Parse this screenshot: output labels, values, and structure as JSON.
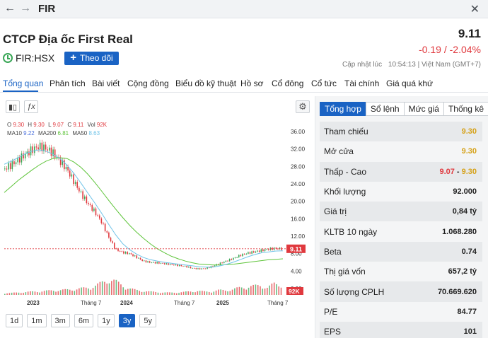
{
  "topbar": {
    "back_icon": "arrow-left-icon",
    "forward_icon": "arrow-right-icon",
    "title": "FIR",
    "close_icon": "close-icon"
  },
  "header": {
    "company": "CTCP Địa ốc First Real",
    "ticker": "FIR:HSX",
    "follow_label": "Theo dõi",
    "price": "9.11",
    "change": "-0.19 / -2.04%",
    "updated_label": "Cập nhật lúc",
    "updated_time": "10:54:13",
    "updated_zone": "| Việt Nam (GMT+7)",
    "colors": {
      "up": "#3aa757",
      "down": "#e0393e",
      "ref": "#d6a21a",
      "accent": "#1a63c4"
    }
  },
  "tabs": [
    {
      "label": "Tổng quan",
      "active": true
    },
    {
      "label": "Phân tích"
    },
    {
      "label": "Bài viết"
    },
    {
      "label": "Cộng đồng"
    },
    {
      "label": "Biểu đồ kỹ thuật"
    },
    {
      "label": "Hồ sơ"
    },
    {
      "label": "Cổ đông"
    },
    {
      "label": "Cổ tức"
    },
    {
      "label": "Tài chính"
    },
    {
      "label": "Giá quá khứ"
    }
  ],
  "chart_tools": {
    "candles_icon": "candlestick-icon",
    "indicator_icon": "fx-icon",
    "settings_icon": "gear-icon"
  },
  "legend": {
    "o_label": "O",
    "o": "9.30",
    "h_label": "H",
    "h": "9.30",
    "l_label": "L",
    "l": "9.07",
    "c_label": "C",
    "c": "9.11",
    "vol_label": "Vol",
    "vol": "92K",
    "ma10_label": "MA10",
    "ma10": "9.22",
    "ma200_label": "MA200",
    "ma200": "6.81",
    "ma50_label": "MA50",
    "ma50": "8.63"
  },
  "chart_data": {
    "type": "candlestick",
    "y_ticks": [
      "36.00",
      "32.00",
      "28.00",
      "24.00",
      "20.00",
      "16.00",
      "12.00",
      "8.00",
      "4.00",
      "0.00"
    ],
    "ylim": [
      0,
      36
    ],
    "x_ticks": [
      "2023",
      "Tháng 7",
      "2024",
      "Tháng 7",
      "2025",
      "Tháng 7"
    ],
    "last_price_label": "9.11",
    "last_price": 9.11,
    "volume_label": "92K",
    "price_series": [
      27.5,
      28.4,
      29.6,
      30.8,
      31.9,
      32.6,
      32.1,
      31.0,
      29.2,
      27.3,
      24.5,
      21.8,
      19.5,
      17.6,
      15.2,
      11.8,
      9.0,
      8.3,
      8.0,
      7.2,
      6.3,
      6.0,
      5.9,
      5.7,
      5.5,
      5.3,
      5.1,
      4.7,
      4.5,
      4.6,
      5.1,
      5.7,
      6.3,
      6.9,
      7.6,
      8.1,
      8.4,
      8.7,
      9.0,
      9.2,
      9.11
    ],
    "ma50_series": [
      28.5,
      29.2,
      30.0,
      30.9,
      31.5,
      31.8,
      31.5,
      30.8,
      29.8,
      28.3,
      26.4,
      24.2,
      21.9,
      19.6,
      17.2,
      14.7,
      12.3,
      10.3,
      8.9,
      7.9,
      7.1,
      6.6,
      6.3,
      6.0,
      5.8,
      5.6,
      5.4,
      5.2,
      5.0,
      4.9,
      4.9,
      5.2,
      5.6,
      6.1,
      6.7,
      7.3,
      7.8,
      8.2,
      8.4,
      8.6,
      8.63
    ],
    "ma200_series": [
      22.0,
      23.4,
      24.8,
      26.0,
      27.2,
      28.3,
      29.2,
      29.8,
      30.0,
      29.8,
      29.0,
      27.8,
      26.2,
      24.3,
      22.3,
      20.2,
      18.2,
      16.3,
      14.5,
      12.9,
      11.5,
      10.2,
      9.1,
      8.2,
      7.4,
      6.8,
      6.3,
      5.9,
      5.6,
      5.5,
      5.4,
      5.4,
      5.5,
      5.6,
      5.8,
      6.0,
      6.2,
      6.4,
      6.6,
      6.7,
      6.81
    ],
    "volume_series": [
      0.1,
      0.12,
      0.15,
      0.18,
      0.2,
      0.22,
      0.25,
      0.28,
      0.3,
      0.32,
      0.35,
      0.4,
      0.45,
      0.55,
      0.75,
      1.0,
      0.85,
      0.6,
      0.4,
      0.3,
      0.25,
      0.2,
      0.18,
      0.15,
      0.14,
      0.15,
      0.18,
      0.22,
      0.25,
      0.2,
      0.22,
      0.3,
      0.28,
      0.35,
      0.45,
      0.5,
      0.55,
      0.6,
      0.45,
      0.7,
      0.65
    ],
    "grid": false
  },
  "range_buttons": [
    {
      "label": "1d"
    },
    {
      "label": "1m"
    },
    {
      "label": "3m"
    },
    {
      "label": "6m"
    },
    {
      "label": "1y"
    },
    {
      "label": "3y",
      "active": true
    },
    {
      "label": "5y"
    }
  ],
  "right_tabs": [
    {
      "label": "Tổng hợp",
      "active": true
    },
    {
      "label": "Sổ lệnh"
    },
    {
      "label": "Mức giá"
    },
    {
      "label": "Thống kê"
    }
  ],
  "stats": [
    {
      "label": "Tham chiếu",
      "value": "9.30",
      "color": "yellow"
    },
    {
      "label": "Mở cửa",
      "value": "9.30",
      "color": "yellow"
    },
    {
      "label": "Thấp - Cao",
      "low": "9.07",
      "high": "9.30",
      "sep": "-",
      "type": "range"
    },
    {
      "label": "Khối lượng",
      "value": "92.000"
    },
    {
      "label": "Giá trị",
      "value": "0,84 tỷ"
    },
    {
      "label": "KLTB 10 ngày",
      "value": "1.068.280"
    },
    {
      "label": "Beta",
      "value": "0.74"
    },
    {
      "label": "Thị giá vốn",
      "value": "657,2 tỷ"
    },
    {
      "label": "Số lượng CPLH",
      "value": "70.669.620"
    },
    {
      "label": "P/E",
      "value": "84.77"
    },
    {
      "label": "EPS",
      "value": "101"
    }
  ]
}
